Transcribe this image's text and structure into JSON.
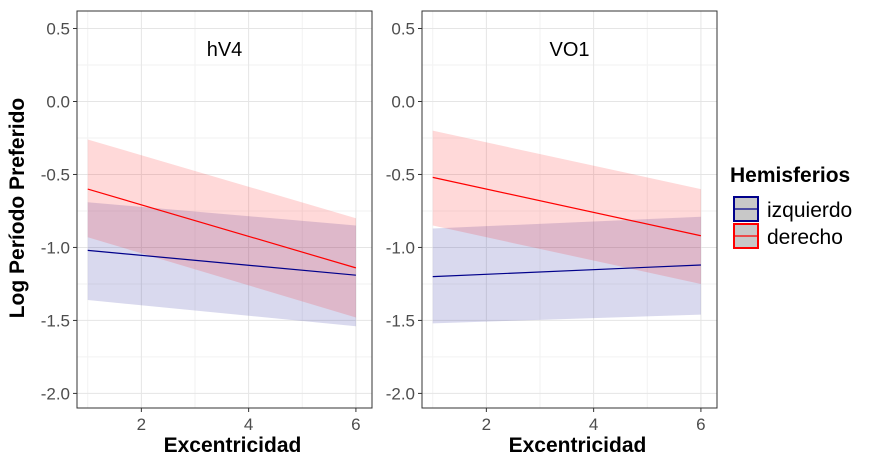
{
  "chart_data": {
    "type": "line",
    "ylabel": "Log Período Preferido",
    "legend": {
      "title": "Hemisferios",
      "position": "right",
      "entries": [
        {
          "label": "izquierdo",
          "color": "#00008b",
          "fill": "#b3b3d9"
        },
        {
          "label": "derecho",
          "color": "#ff0000",
          "fill": "#ffb3b3"
        }
      ]
    },
    "grid": true,
    "panels": [
      {
        "title": "hV4",
        "xlabel": "Excentricidad",
        "xlim": [
          0.8,
          6.3
        ],
        "ylim": [
          -2.1,
          0.62
        ],
        "xticks": [
          2,
          4,
          6
        ],
        "yticks": [
          -2.0,
          -1.5,
          -1.0,
          -0.5,
          0.0,
          0.5
        ],
        "ytick_labels": [
          "-2.0",
          "-1.5",
          "-1.0",
          "-0.5",
          "0.0",
          "0.5"
        ],
        "series": [
          {
            "name": "izquierdo",
            "x": [
              1,
              6
            ],
            "y": [
              -1.02,
              -1.19
            ],
            "lower": [
              -1.36,
              -1.54
            ],
            "upper": [
              -0.69,
              -0.85
            ]
          },
          {
            "name": "derecho",
            "x": [
              1,
              6
            ],
            "y": [
              -0.6,
              -1.14
            ],
            "lower": [
              -0.93,
              -1.48
            ],
            "upper": [
              -0.26,
              -0.8
            ]
          }
        ]
      },
      {
        "title": "VO1",
        "xlabel": "Excentricidad",
        "xlim": [
          0.8,
          6.3
        ],
        "ylim": [
          -2.1,
          0.62
        ],
        "xticks": [
          2,
          4,
          6
        ],
        "yticks": [
          -2.0,
          -1.5,
          -1.0,
          -0.5,
          0.0,
          0.5
        ],
        "ytick_labels": [
          "-2.0",
          "-1.5",
          "-1.0",
          "-0.5",
          "0.0",
          "0.5"
        ],
        "series": [
          {
            "name": "izquierdo",
            "x": [
              1,
              6
            ],
            "y": [
              -1.2,
              -1.12
            ],
            "lower": [
              -1.52,
              -1.46
            ],
            "upper": [
              -0.87,
              -0.79
            ]
          },
          {
            "name": "derecho",
            "x": [
              1,
              6
            ],
            "y": [
              -0.52,
              -0.92
            ],
            "lower": [
              -0.85,
              -1.25
            ],
            "upper": [
              -0.2,
              -0.6
            ]
          }
        ]
      }
    ]
  }
}
